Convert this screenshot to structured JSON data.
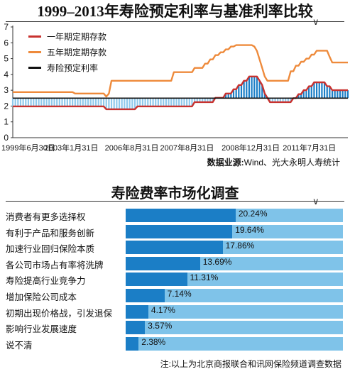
{
  "top": {
    "title": "1999–2013年寿险预定利率与基准利率比较",
    "source_label": "数据业源:",
    "source_text": "Wind、光大永明人寿统计"
  },
  "chart_data": [
    {
      "type": "line",
      "title": "1999–2013年寿险预定利率与基准利率比较",
      "y_ticks": [
        "0",
        "1",
        "2",
        "3",
        "4",
        "5",
        "6",
        "7"
      ],
      "ylim": [
        0,
        7
      ],
      "x_tick_labels": [
        "1999年6月30日",
        "2003年1月31日",
        "2006年8月31日",
        "2007年8月31日",
        "2008年12月31日",
        "2011年7月31日"
      ],
      "legend_placement": "top-left",
      "grid": false,
      "series": [
        {
          "name": "一年期定期存款",
          "color": "#c8322f",
          "values": [
            1.98,
            1.98,
            1.98,
            1.98,
            1.98,
            1.98,
            1.98,
            1.98,
            1.98,
            1.98,
            1.98,
            1.98,
            1.98,
            1.98,
            1.98,
            1.98,
            1.98,
            1.98,
            1.98,
            1.98,
            1.98,
            1.98,
            1.98,
            1.98,
            1.98,
            1.98,
            1.98,
            1.98,
            1.98,
            1.98,
            1.98,
            1.98,
            1.98,
            1.98,
            1.98,
            1.98,
            1.8,
            1.8,
            1.8,
            1.8,
            1.8,
            1.8,
            1.8,
            1.8,
            1.8,
            1.8,
            1.8,
            1.8,
            1.98,
            1.98,
            1.98,
            1.98,
            1.98,
            1.98,
            1.98,
            1.98,
            1.98,
            1.98,
            1.98,
            1.98,
            1.98,
            1.98,
            1.98,
            1.98,
            1.98,
            1.98,
            1.98,
            1.98,
            1.98,
            1.98,
            2.25,
            2.25,
            2.25,
            2.25,
            2.25,
            2.25,
            2.25,
            2.25,
            2.52,
            2.52,
            2.52,
            2.52,
            2.79,
            2.79,
            2.79,
            3.06,
            3.06,
            3.33,
            3.33,
            3.6,
            3.6,
            3.87,
            3.87,
            3.87,
            3.87,
            3.6,
            3.33,
            2.79,
            2.52,
            2.25,
            2.25,
            2.25,
            2.25,
            2.25,
            2.25,
            2.25,
            2.25,
            2.25,
            2.5,
            2.5,
            2.75,
            2.75,
            3.0,
            3.0,
            3.25,
            3.25,
            3.5,
            3.5,
            3.5,
            3.5,
            3.5,
            3.25,
            3.25,
            3.0,
            3.0,
            3.0,
            3.0,
            3.0,
            3.0,
            3.0
          ]
        },
        {
          "name": "五年期定期存款",
          "color": "#ee8a3b",
          "values": [
            2.88,
            2.88,
            2.88,
            2.88,
            2.88,
            2.88,
            2.88,
            2.88,
            2.88,
            2.88,
            2.88,
            2.88,
            2.88,
            2.88,
            2.88,
            2.88,
            2.88,
            2.88,
            2.88,
            2.88,
            2.88,
            2.88,
            2.88,
            2.88,
            2.79,
            2.79,
            2.79,
            2.79,
            2.79,
            2.79,
            2.79,
            2.79,
            2.79,
            2.79,
            2.79,
            2.79,
            2.6,
            2.79,
            3.6,
            3.6,
            3.6,
            3.6,
            3.6,
            3.6,
            3.6,
            3.6,
            3.6,
            3.6,
            3.6,
            3.6,
            3.6,
            3.6,
            3.6,
            3.6,
            3.6,
            3.6,
            3.6,
            3.6,
            3.6,
            3.6,
            3.6,
            3.6,
            4.14,
            4.14,
            4.14,
            4.14,
            4.14,
            4.14,
            4.14,
            4.14,
            4.41,
            4.41,
            4.41,
            4.41,
            4.68,
            4.68,
            4.95,
            4.95,
            5.22,
            5.22,
            5.4,
            5.4,
            5.58,
            5.58,
            5.76,
            5.76,
            5.85,
            5.85,
            5.85,
            5.85,
            5.85,
            5.85,
            5.85,
            5.76,
            5.49,
            4.95,
            4.41,
            3.87,
            3.6,
            3.6,
            3.6,
            3.6,
            3.6,
            3.6,
            3.6,
            3.6,
            3.6,
            4.2,
            4.2,
            4.55,
            4.55,
            4.8,
            4.8,
            5.0,
            5.0,
            5.25,
            5.25,
            5.5,
            5.5,
            5.5,
            5.5,
            5.5,
            5.1,
            4.75,
            4.75,
            4.75,
            4.75,
            4.75,
            4.75,
            4.75
          ]
        },
        {
          "name": "寿险预定利率",
          "color": "#111111",
          "values": [
            2.5,
            2.5,
            2.5,
            2.5,
            2.5,
            2.5,
            2.5,
            2.5,
            2.5,
            2.5,
            2.5,
            2.5,
            2.5,
            2.5,
            2.5,
            2.5,
            2.5,
            2.5,
            2.5,
            2.5,
            2.5,
            2.5,
            2.5,
            2.5,
            2.5,
            2.5,
            2.5,
            2.5,
            2.5,
            2.5,
            2.5,
            2.5,
            2.5,
            2.5,
            2.5,
            2.5,
            2.5,
            2.5,
            2.5,
            2.5,
            2.5,
            2.5,
            2.5,
            2.5,
            2.5,
            2.5,
            2.5,
            2.5,
            2.5,
            2.5,
            2.5,
            2.5,
            2.5,
            2.5,
            2.5,
            2.5,
            2.5,
            2.5,
            2.5,
            2.5,
            2.5,
            2.5,
            2.5,
            2.5,
            2.5,
            2.5,
            2.5,
            2.5,
            2.5,
            2.5,
            2.5,
            2.5,
            2.5,
            2.5,
            2.5,
            2.5,
            2.5,
            2.5,
            2.5,
            2.5,
            2.5,
            2.5,
            2.5,
            2.5,
            2.5,
            2.5,
            2.5,
            2.5,
            2.5,
            2.5,
            2.5,
            2.5,
            2.5,
            2.5,
            2.5,
            2.5,
            2.5,
            2.5,
            2.5,
            2.5,
            2.5,
            2.5,
            2.5,
            2.5,
            2.5,
            2.5,
            2.5,
            2.5,
            2.5,
            2.5,
            2.5,
            2.5,
            2.5,
            2.5,
            2.5,
            2.5,
            2.5,
            2.5,
            2.5,
            2.5,
            2.5,
            2.5,
            2.5,
            2.5,
            2.5,
            2.5,
            2.5,
            2.5,
            2.5,
            2.5
          ]
        }
      ],
      "gap_fill": {
        "color_positive": "#1b7ec6",
        "color_negative": "#8fc9ec"
      }
    },
    {
      "type": "bar",
      "title": "寿险费率市场化调查",
      "categories": [
        "消费者有更多选择权",
        "有利于产品和服务创新",
        "加速行业回归保险本质",
        "各公司市场占有率将洗牌",
        "寿险提高行业竞争力",
        "增加保险公司成本",
        "初期出现价格战，引发退保",
        "影响行业发展速度",
        "说不清"
      ],
      "values": [
        20.24,
        19.64,
        17.86,
        13.69,
        11.31,
        7.14,
        4.17,
        3.57,
        2.38
      ],
      "value_labels": [
        "20.24%",
        "19.64%",
        "17.86%",
        "13.69%",
        "11.31%",
        "7.14%",
        "4.17%",
        "3.57%",
        "2.38%"
      ],
      "xlim": [
        0,
        40
      ],
      "bar_color": "#1b7ec6",
      "track_color": "#7fc3e9"
    }
  ],
  "bottom": {
    "title": "寿险费率市场化调查",
    "note": "注:以上为北京商报联合和讯网保险频道调查数据"
  }
}
